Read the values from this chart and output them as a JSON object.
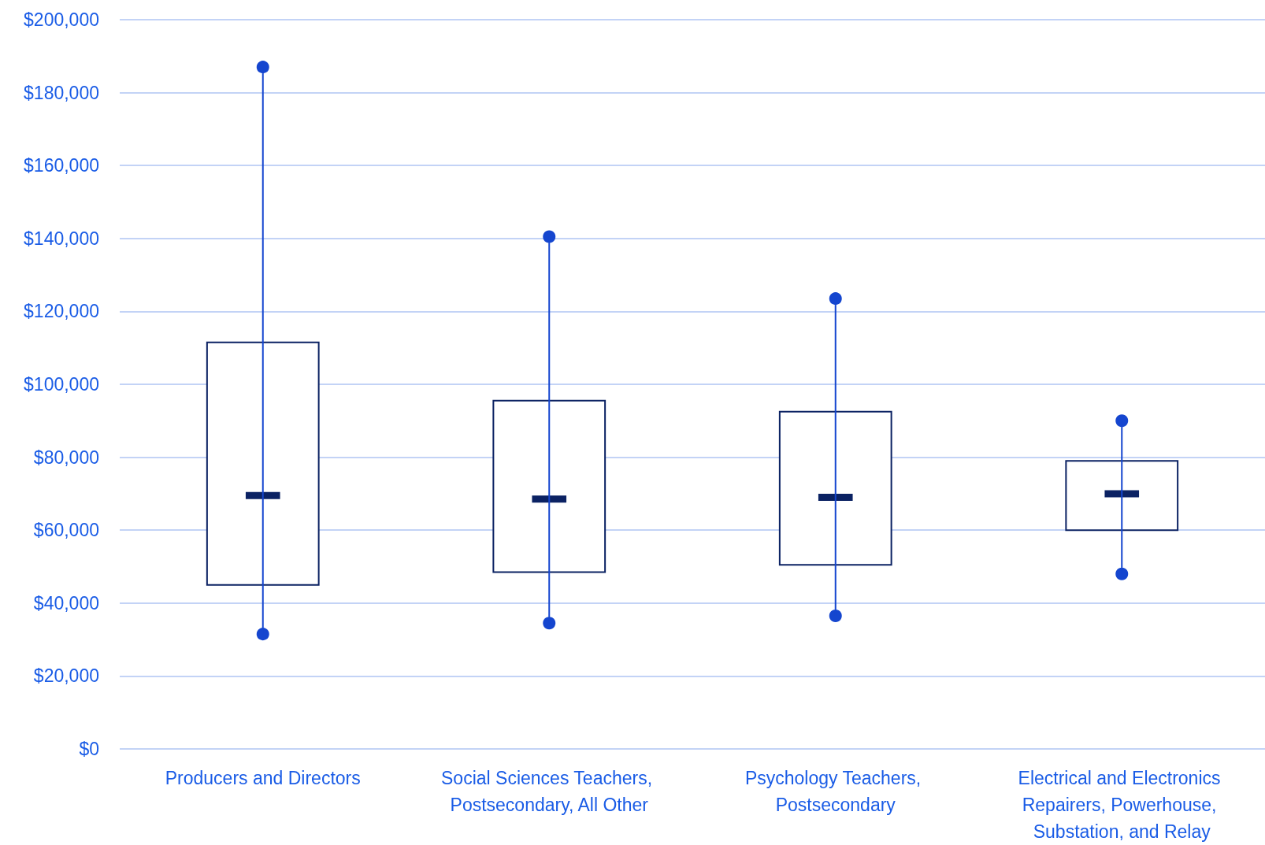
{
  "chart_data": {
    "type": "box",
    "categories": [
      "Producers and Directors",
      "Social Sciences Teachers, Postsecondary, All Other",
      "Psychology Teachers, Postsecondary",
      "Electrical and Electronics Repairers, Powerhouse, Substation, and Relay"
    ],
    "boxes": [
      {
        "low": 31500,
        "q1": 45000,
        "median": 69500,
        "q3": 111500,
        "high": 187000
      },
      {
        "low": 34500,
        "q1": 48500,
        "median": 68500,
        "q3": 95500,
        "high": 140500
      },
      {
        "low": 36500,
        "q1": 50500,
        "median": 69000,
        "q3": 92500,
        "high": 123500
      },
      {
        "low": 48000,
        "q1": 60000,
        "median": 70000,
        "q3": 79000,
        "high": 90000
      }
    ],
    "color": "#0b2263",
    "ylim": [
      0,
      200000
    ],
    "yticks": [
      {
        "value": 0,
        "label": "$0"
      },
      {
        "value": 20000,
        "label": "$20,000"
      },
      {
        "value": 40000,
        "label": "$40,000"
      },
      {
        "value": 60000,
        "label": "$60,000"
      },
      {
        "value": 80000,
        "label": "$80,000"
      },
      {
        "value": 100000,
        "label": "$100,000"
      },
      {
        "value": 120000,
        "label": "$120,000"
      },
      {
        "value": 140000,
        "label": "$140,000"
      },
      {
        "value": 160000,
        "label": "$160,000"
      },
      {
        "value": 180000,
        "label": "$180,000"
      },
      {
        "value": 200000,
        "label": "$200,000"
      }
    ],
    "grid": "y"
  }
}
